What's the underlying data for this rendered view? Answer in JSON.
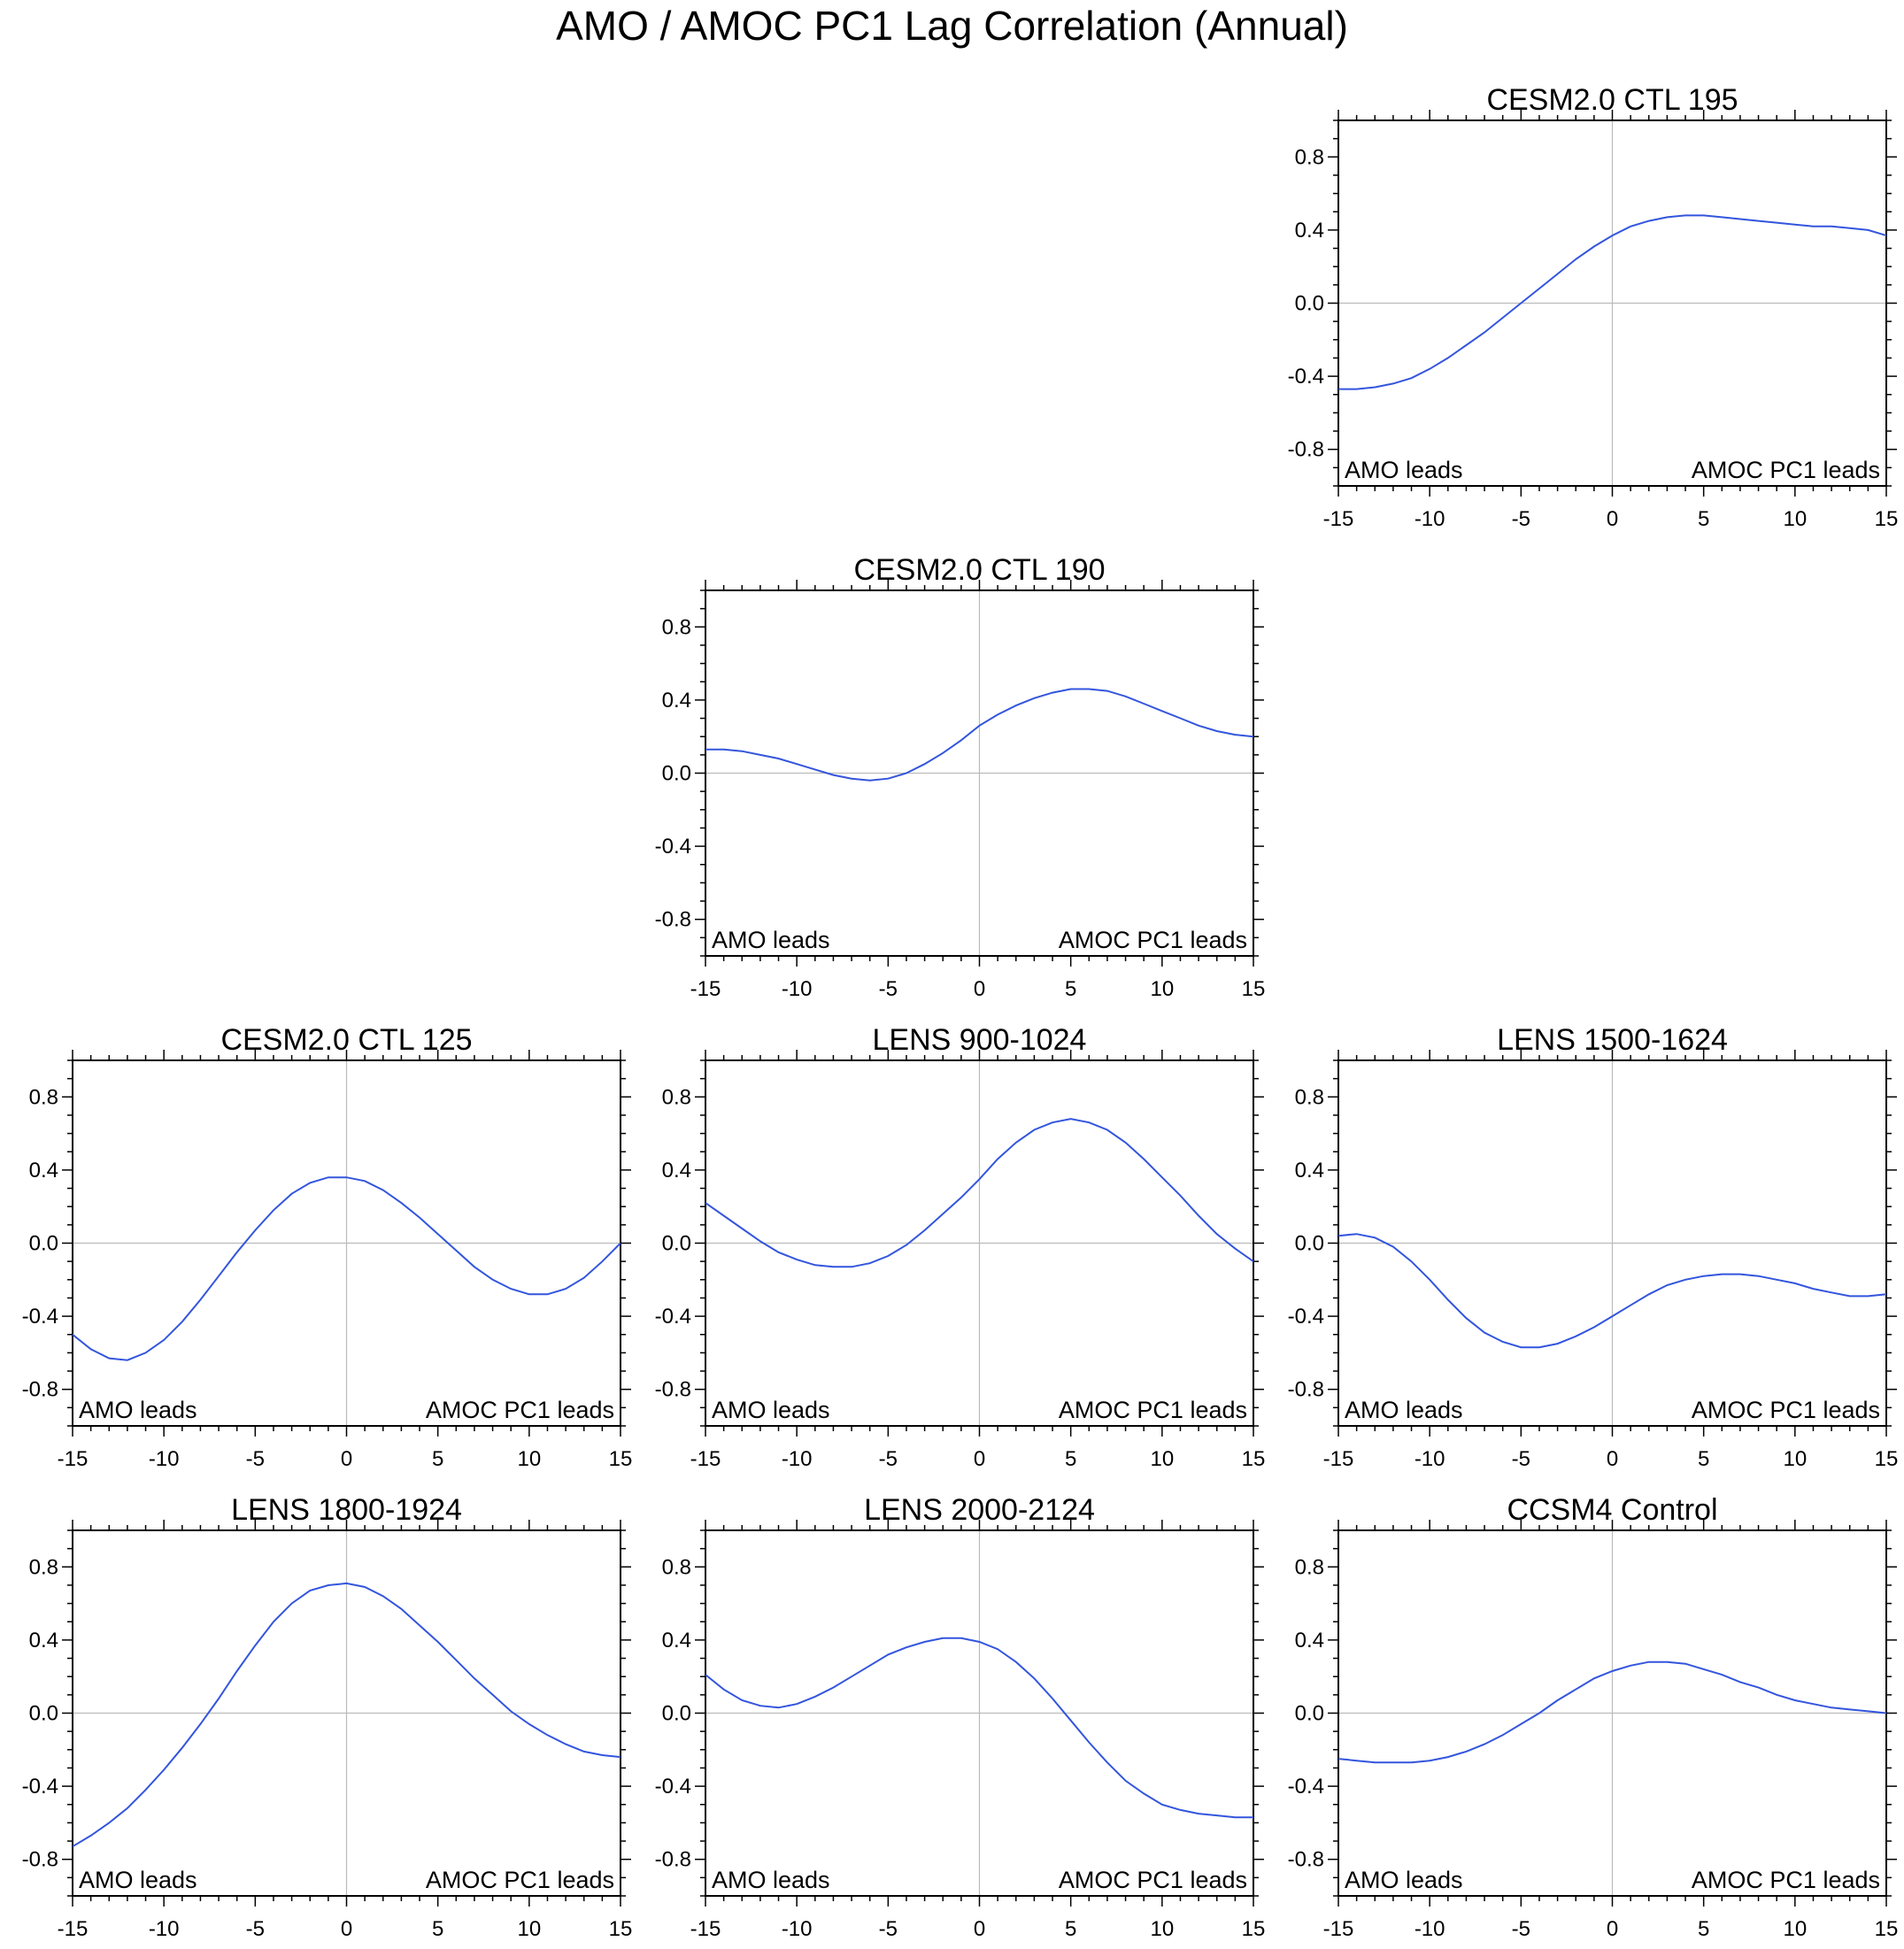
{
  "figure": {
    "title": "AMO / AMOC PC1 Lag Correlation (Annual)",
    "line_color": "#3355dd",
    "zero_line_color": "#bbbbbb"
  },
  "chart_data": [
    {
      "type": "line",
      "title": "CESM2.0 CTL 195",
      "x": [
        -15,
        -14,
        -13,
        -12,
        -11,
        -10,
        -9,
        -8,
        -7,
        -6,
        -5,
        -4,
        -3,
        -2,
        -1,
        0,
        1,
        2,
        3,
        4,
        5,
        6,
        7,
        8,
        9,
        10,
        11,
        12,
        13,
        14,
        15
      ],
      "series": [
        {
          "values": [
            -0.47,
            -0.47,
            -0.46,
            -0.44,
            -0.41,
            -0.36,
            -0.3,
            -0.23,
            -0.16,
            -0.08,
            0.0,
            0.08,
            0.16,
            0.24,
            0.31,
            0.37,
            0.42,
            0.45,
            0.47,
            0.48,
            0.48,
            0.47,
            0.46,
            0.45,
            0.44,
            0.43,
            0.42,
            0.42,
            0.41,
            0.4,
            0.37
          ]
        }
      ],
      "xlim": [
        -15,
        15
      ],
      "ylim": [
        -1.0,
        1.0
      ],
      "xticks": [
        "-15",
        "-10",
        "-5",
        "0",
        "5",
        "10",
        "15"
      ],
      "yticks": [
        "0.8",
        "0.4",
        "0.0",
        "-0.4",
        "-0.8"
      ],
      "annotations": {
        "left": "AMO leads",
        "right": "AMOC PC1 leads"
      }
    },
    {
      "type": "line",
      "title": "CESM2.0 CTL 190",
      "x": [
        -15,
        -14,
        -13,
        -12,
        -11,
        -10,
        -9,
        -8,
        -7,
        -6,
        -5,
        -4,
        -3,
        -2,
        -1,
        0,
        1,
        2,
        3,
        4,
        5,
        6,
        7,
        8,
        9,
        10,
        11,
        12,
        13,
        14,
        15
      ],
      "series": [
        {
          "values": [
            0.13,
            0.13,
            0.12,
            0.1,
            0.08,
            0.05,
            0.02,
            -0.01,
            -0.03,
            -0.04,
            -0.03,
            0.0,
            0.05,
            0.11,
            0.18,
            0.26,
            0.32,
            0.37,
            0.41,
            0.44,
            0.46,
            0.46,
            0.45,
            0.42,
            0.38,
            0.34,
            0.3,
            0.26,
            0.23,
            0.21,
            0.2
          ]
        }
      ],
      "xlim": [
        -15,
        15
      ],
      "ylim": [
        -1.0,
        1.0
      ],
      "xticks": [
        "-15",
        "-10",
        "-5",
        "0",
        "5",
        "10",
        "15"
      ],
      "yticks": [
        "0.8",
        "0.4",
        "0.0",
        "-0.4",
        "-0.8"
      ],
      "annotations": {
        "left": "AMO leads",
        "right": "AMOC PC1 leads"
      }
    },
    {
      "type": "line",
      "title": "CESM2.0 CTL 125",
      "x": [
        -15,
        -14,
        -13,
        -12,
        -11,
        -10,
        -9,
        -8,
        -7,
        -6,
        -5,
        -4,
        -3,
        -2,
        -1,
        0,
        1,
        2,
        3,
        4,
        5,
        6,
        7,
        8,
        9,
        10,
        11,
        12,
        13,
        14,
        15
      ],
      "series": [
        {
          "values": [
            -0.5,
            -0.58,
            -0.63,
            -0.64,
            -0.6,
            -0.53,
            -0.43,
            -0.31,
            -0.18,
            -0.05,
            0.07,
            0.18,
            0.27,
            0.33,
            0.36,
            0.36,
            0.34,
            0.29,
            0.22,
            0.14,
            0.05,
            -0.04,
            -0.13,
            -0.2,
            -0.25,
            -0.28,
            -0.28,
            -0.25,
            -0.19,
            -0.1,
            0.0
          ]
        }
      ],
      "xlim": [
        -15,
        15
      ],
      "ylim": [
        -1.0,
        1.0
      ],
      "xticks": [
        "-15",
        "-10",
        "-5",
        "0",
        "5",
        "10",
        "15"
      ],
      "yticks": [
        "0.8",
        "0.4",
        "0.0",
        "-0.4",
        "-0.8"
      ],
      "annotations": {
        "left": "AMO leads",
        "right": "AMOC PC1 leads"
      }
    },
    {
      "type": "line",
      "title": "LENS 900-1024",
      "x": [
        -15,
        -14,
        -13,
        -12,
        -11,
        -10,
        -9,
        -8,
        -7,
        -6,
        -5,
        -4,
        -3,
        -2,
        -1,
        0,
        1,
        2,
        3,
        4,
        5,
        6,
        7,
        8,
        9,
        10,
        11,
        12,
        13,
        14,
        15
      ],
      "series": [
        {
          "values": [
            0.22,
            0.15,
            0.08,
            0.01,
            -0.05,
            -0.09,
            -0.12,
            -0.13,
            -0.13,
            -0.11,
            -0.07,
            -0.01,
            0.07,
            0.16,
            0.25,
            0.35,
            0.46,
            0.55,
            0.62,
            0.66,
            0.68,
            0.66,
            0.62,
            0.55,
            0.46,
            0.36,
            0.26,
            0.15,
            0.05,
            -0.03,
            -0.1
          ]
        }
      ],
      "xlim": [
        -15,
        15
      ],
      "ylim": [
        -1.0,
        1.0
      ],
      "xticks": [
        "-15",
        "-10",
        "-5",
        "0",
        "5",
        "10",
        "15"
      ],
      "yticks": [
        "0.8",
        "0.4",
        "0.0",
        "-0.4",
        "-0.8"
      ],
      "annotations": {
        "left": "AMO leads",
        "right": "AMOC PC1 leads"
      }
    },
    {
      "type": "line",
      "title": "LENS 1500-1624",
      "x": [
        -15,
        -14,
        -13,
        -12,
        -11,
        -10,
        -9,
        -8,
        -7,
        -6,
        -5,
        -4,
        -3,
        -2,
        -1,
        0,
        1,
        2,
        3,
        4,
        5,
        6,
        7,
        8,
        9,
        10,
        11,
        12,
        13,
        14,
        15
      ],
      "series": [
        {
          "values": [
            0.04,
            0.05,
            0.03,
            -0.02,
            -0.1,
            -0.2,
            -0.31,
            -0.41,
            -0.49,
            -0.54,
            -0.57,
            -0.57,
            -0.55,
            -0.51,
            -0.46,
            -0.4,
            -0.34,
            -0.28,
            -0.23,
            -0.2,
            -0.18,
            -0.17,
            -0.17,
            -0.18,
            -0.2,
            -0.22,
            -0.25,
            -0.27,
            -0.29,
            -0.29,
            -0.28
          ]
        }
      ],
      "xlim": [
        -15,
        15
      ],
      "ylim": [
        -1.0,
        1.0
      ],
      "xticks": [
        "-15",
        "-10",
        "-5",
        "0",
        "5",
        "10",
        "15"
      ],
      "yticks": [
        "0.8",
        "0.4",
        "0.0",
        "-0.4",
        "-0.8"
      ],
      "annotations": {
        "left": "AMO leads",
        "right": "AMOC PC1 leads"
      }
    },
    {
      "type": "line",
      "title": "LENS 1800-1924",
      "x": [
        -15,
        -14,
        -13,
        -12,
        -11,
        -10,
        -9,
        -8,
        -7,
        -6,
        -5,
        -4,
        -3,
        -2,
        -1,
        0,
        1,
        2,
        3,
        4,
        5,
        6,
        7,
        8,
        9,
        10,
        11,
        12,
        13,
        14,
        15
      ],
      "series": [
        {
          "values": [
            -0.73,
            -0.67,
            -0.6,
            -0.52,
            -0.42,
            -0.31,
            -0.19,
            -0.06,
            0.08,
            0.23,
            0.37,
            0.5,
            0.6,
            0.67,
            0.7,
            0.71,
            0.69,
            0.64,
            0.57,
            0.48,
            0.39,
            0.29,
            0.19,
            0.1,
            0.01,
            -0.06,
            -0.12,
            -0.17,
            -0.21,
            -0.23,
            -0.24
          ]
        }
      ],
      "xlim": [
        -15,
        15
      ],
      "ylim": [
        -1.0,
        1.0
      ],
      "xticks": [
        "-15",
        "-10",
        "-5",
        "0",
        "5",
        "10",
        "15"
      ],
      "yticks": [
        "0.8",
        "0.4",
        "0.0",
        "-0.4",
        "-0.8"
      ],
      "annotations": {
        "left": "AMO leads",
        "right": "AMOC PC1 leads"
      }
    },
    {
      "type": "line",
      "title": "LENS 2000-2124",
      "x": [
        -15,
        -14,
        -13,
        -12,
        -11,
        -10,
        -9,
        -8,
        -7,
        -6,
        -5,
        -4,
        -3,
        -2,
        -1,
        0,
        1,
        2,
        3,
        4,
        5,
        6,
        7,
        8,
        9,
        10,
        11,
        12,
        13,
        14,
        15
      ],
      "series": [
        {
          "values": [
            0.21,
            0.13,
            0.07,
            0.04,
            0.03,
            0.05,
            0.09,
            0.14,
            0.2,
            0.26,
            0.32,
            0.36,
            0.39,
            0.41,
            0.41,
            0.39,
            0.35,
            0.28,
            0.19,
            0.08,
            -0.04,
            -0.16,
            -0.27,
            -0.37,
            -0.44,
            -0.5,
            -0.53,
            -0.55,
            -0.56,
            -0.57,
            -0.57
          ]
        }
      ],
      "xlim": [
        -15,
        15
      ],
      "ylim": [
        -1.0,
        1.0
      ],
      "xticks": [
        "-15",
        "-10",
        "-5",
        "0",
        "5",
        "10",
        "15"
      ],
      "yticks": [
        "0.8",
        "0.4",
        "0.0",
        "-0.4",
        "-0.8"
      ],
      "annotations": {
        "left": "AMO leads",
        "right": "AMOC PC1 leads"
      }
    },
    {
      "type": "line",
      "title": "CCSM4 Control",
      "x": [
        -15,
        -14,
        -13,
        -12,
        -11,
        -10,
        -9,
        -8,
        -7,
        -6,
        -5,
        -4,
        -3,
        -2,
        -1,
        0,
        1,
        2,
        3,
        4,
        5,
        6,
        7,
        8,
        9,
        10,
        11,
        12,
        13,
        14,
        15
      ],
      "series": [
        {
          "values": [
            -0.25,
            -0.26,
            -0.27,
            -0.27,
            -0.27,
            -0.26,
            -0.24,
            -0.21,
            -0.17,
            -0.12,
            -0.06,
            0.0,
            0.07,
            0.13,
            0.19,
            0.23,
            0.26,
            0.28,
            0.28,
            0.27,
            0.24,
            0.21,
            0.17,
            0.14,
            0.1,
            0.07,
            0.05,
            0.03,
            0.02,
            0.01,
            0.0
          ]
        }
      ],
      "xlim": [
        -15,
        15
      ],
      "ylim": [
        -1.0,
        1.0
      ],
      "xticks": [
        "-15",
        "-10",
        "-5",
        "0",
        "5",
        "10",
        "15"
      ],
      "yticks": [
        "0.8",
        "0.4",
        "0.0",
        "-0.4",
        "-0.8"
      ],
      "annotations": {
        "left": "AMO leads",
        "right": "AMOC PC1 leads"
      }
    }
  ]
}
